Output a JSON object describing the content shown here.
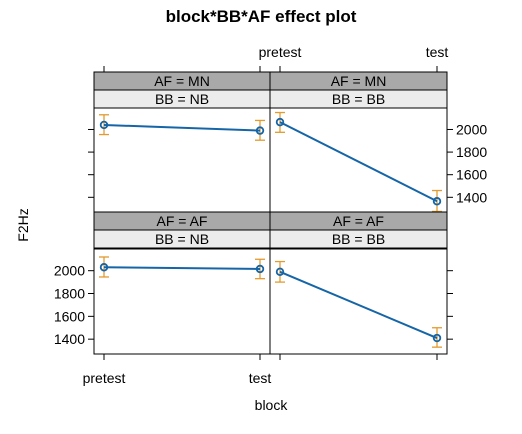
{
  "chart_data": {
    "type": "line",
    "title": "block*BB*AF effect plot",
    "xlabel": "block",
    "ylabel": "F2Hz",
    "categories": [
      "pretest",
      "test"
    ],
    "ylim": [
      1270,
      2190
    ],
    "yticks": [
      1400,
      1600,
      1800,
      2000
    ],
    "line_color": "#1565a7",
    "errorbar_color": "#e39a2e",
    "strip_outer_color": "#a9a9a9",
    "strip_inner_color": "#ececec",
    "panels": [
      {
        "af_strip": "AF = MN",
        "bb_strip": "BB = NB",
        "values": [
          2040,
          1990
        ],
        "lower": [
          1955,
          1905
        ],
        "upper": [
          2130,
          2080
        ]
      },
      {
        "af_strip": "AF = MN",
        "bb_strip": "BB = BB",
        "values": [
          2065,
          1365
        ],
        "lower": [
          1975,
          1275
        ],
        "upper": [
          2150,
          1460
        ]
      },
      {
        "af_strip": "AF = AF",
        "bb_strip": "BB = NB",
        "values": [
          2030,
          2015
        ],
        "lower": [
          1945,
          1930
        ],
        "upper": [
          2120,
          2100
        ]
      },
      {
        "af_strip": "AF = AF",
        "bb_strip": "BB = BB",
        "values": [
          1990,
          1410
        ],
        "lower": [
          1900,
          1330
        ],
        "upper": [
          2080,
          1500
        ]
      }
    ]
  }
}
